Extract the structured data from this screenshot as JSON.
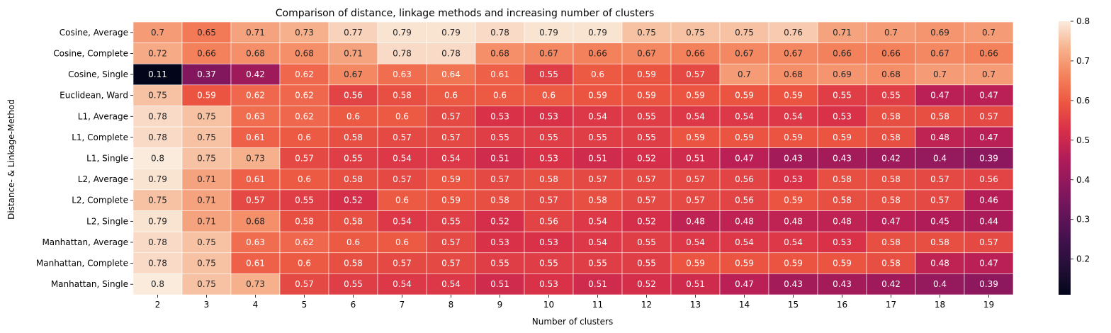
{
  "chart_data": {
    "type": "heatmap",
    "title": "Comparison of distance, linkage methods and increasing number of clusters",
    "xlabel": "Number of clusters",
    "ylabel": "Distance- & Linkage-Method",
    "x": [
      "2",
      "3",
      "4",
      "5",
      "6",
      "7",
      "8",
      "9",
      "10",
      "11",
      "12",
      "13",
      "14",
      "15",
      "16",
      "17",
      "18",
      "19"
    ],
    "y": [
      "Cosine, Average",
      "Cosine, Complete",
      "Cosine, Single",
      "Euclidean, Ward",
      "L1, Average",
      "L1, Complete",
      "L1, Single",
      "L2, Average",
      "L2, Complete",
      "L2, Single",
      "Manhattan, Average",
      "Manhattan, Complete",
      "Manhattan, Single"
    ],
    "values": [
      [
        0.7,
        0.65,
        0.71,
        0.73,
        0.77,
        0.79,
        0.79,
        0.78,
        0.79,
        0.79,
        0.75,
        0.75,
        0.75,
        0.76,
        0.71,
        0.7,
        0.69,
        0.7
      ],
      [
        0.72,
        0.66,
        0.68,
        0.68,
        0.71,
        0.78,
        0.78,
        0.68,
        0.67,
        0.66,
        0.67,
        0.66,
        0.67,
        0.67,
        0.66,
        0.66,
        0.67,
        0.66
      ],
      [
        0.11,
        0.37,
        0.42,
        0.62,
        0.67,
        0.63,
        0.64,
        0.61,
        0.55,
        0.6,
        0.59,
        0.57,
        0.7,
        0.68,
        0.69,
        0.68,
        0.7,
        0.7
      ],
      [
        0.75,
        0.59,
        0.62,
        0.62,
        0.56,
        0.58,
        0.6,
        0.6,
        0.6,
        0.59,
        0.59,
        0.59,
        0.59,
        0.59,
        0.55,
        0.55,
        0.47,
        0.47
      ],
      [
        0.78,
        0.75,
        0.63,
        0.62,
        0.6,
        0.6,
        0.57,
        0.53,
        0.53,
        0.54,
        0.55,
        0.54,
        0.54,
        0.54,
        0.53,
        0.58,
        0.58,
        0.57
      ],
      [
        0.78,
        0.75,
        0.61,
        0.6,
        0.58,
        0.57,
        0.57,
        0.55,
        0.55,
        0.55,
        0.55,
        0.59,
        0.59,
        0.59,
        0.59,
        0.58,
        0.48,
        0.47
      ],
      [
        0.8,
        0.75,
        0.73,
        0.57,
        0.55,
        0.54,
        0.54,
        0.51,
        0.53,
        0.51,
        0.52,
        0.51,
        0.47,
        0.43,
        0.43,
        0.42,
        0.4,
        0.39
      ],
      [
        0.79,
        0.71,
        0.61,
        0.6,
        0.58,
        0.57,
        0.59,
        0.57,
        0.58,
        0.57,
        0.57,
        0.57,
        0.56,
        0.53,
        0.58,
        0.58,
        0.57,
        0.56
      ],
      [
        0.75,
        0.71,
        0.57,
        0.55,
        0.52,
        0.6,
        0.59,
        0.58,
        0.57,
        0.58,
        0.57,
        0.57,
        0.56,
        0.59,
        0.58,
        0.58,
        0.57,
        0.46
      ],
      [
        0.79,
        0.71,
        0.68,
        0.58,
        0.58,
        0.54,
        0.55,
        0.52,
        0.56,
        0.54,
        0.52,
        0.48,
        0.48,
        0.48,
        0.48,
        0.47,
        0.45,
        0.44
      ],
      [
        0.78,
        0.75,
        0.63,
        0.62,
        0.6,
        0.6,
        0.57,
        0.53,
        0.53,
        0.54,
        0.55,
        0.54,
        0.54,
        0.54,
        0.53,
        0.58,
        0.58,
        0.57
      ],
      [
        0.78,
        0.75,
        0.61,
        0.6,
        0.58,
        0.57,
        0.57,
        0.55,
        0.55,
        0.55,
        0.55,
        0.59,
        0.59,
        0.59,
        0.59,
        0.58,
        0.48,
        0.47
      ],
      [
        0.8,
        0.75,
        0.73,
        0.57,
        0.55,
        0.54,
        0.54,
        0.51,
        0.53,
        0.51,
        0.52,
        0.51,
        0.47,
        0.43,
        0.43,
        0.42,
        0.4,
        0.39
      ]
    ],
    "colorbar": {
      "range": [
        0.11,
        0.8
      ],
      "ticks": [
        0.2,
        0.3,
        0.4,
        0.5,
        0.6,
        0.7,
        0.8
      ],
      "tick_labels": [
        "0.2",
        "0.3",
        "0.4",
        "0.5",
        "0.6",
        "0.7",
        "0.8"
      ],
      "colormap": "rocket"
    },
    "grid": false,
    "annotated": true
  }
}
